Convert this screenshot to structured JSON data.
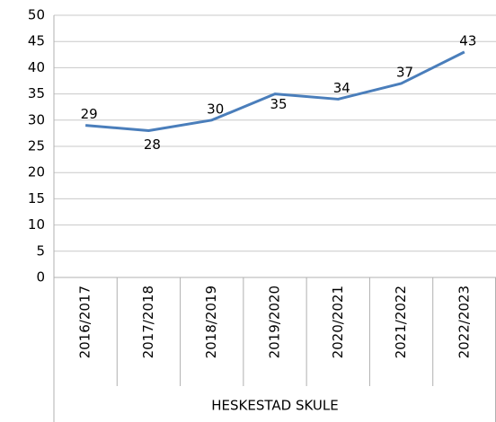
{
  "chart_data": {
    "type": "line",
    "categories": [
      "2016/2017",
      "2017/2018",
      "2018/2019",
      "2019/2020",
      "2020/2021",
      "2021/2022",
      "2022/2023"
    ],
    "group_label": "HESKESTAD SKULE",
    "series": [
      {
        "name": "HESKESTAD SKULE",
        "color": "#4a7ebb",
        "values": [
          29,
          28,
          30,
          35,
          34,
          37,
          43
        ]
      }
    ],
    "ylim": [
      0,
      50
    ],
    "yticks": [
      0,
      5,
      10,
      15,
      20,
      25,
      30,
      35,
      40,
      45,
      50
    ],
    "grid": true
  }
}
